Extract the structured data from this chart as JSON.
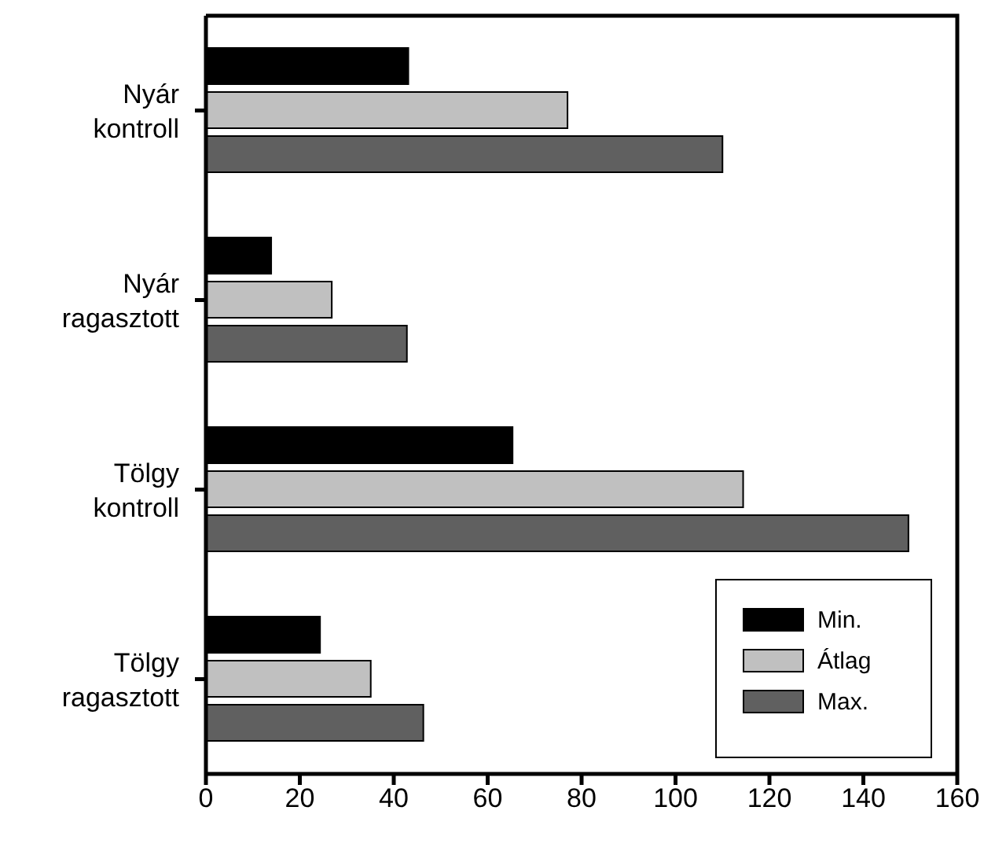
{
  "chart_data": {
    "type": "bar",
    "orientation": "horizontal",
    "categories": [
      "Nyár kontroll",
      "Nyár ragasztott",
      "Tölgy kontroll",
      "Tölgy ragasztott"
    ],
    "series": [
      {
        "name": "Min.",
        "color": "#000000",
        "values": [
          43.1,
          13.9,
          65.3,
          24.3
        ]
      },
      {
        "name": "Átlag",
        "color": "#c0c0c0",
        "values": [
          77.0,
          26.8,
          114.4,
          35.1
        ]
      },
      {
        "name": "Max.",
        "color": "#606060",
        "values": [
          110.0,
          42.8,
          149.6,
          46.3
        ]
      }
    ],
    "xlim": [
      0,
      160
    ],
    "xticks": [
      0,
      20,
      40,
      60,
      80,
      100,
      120,
      140,
      160
    ],
    "legend": "bottom right",
    "grid": false
  }
}
